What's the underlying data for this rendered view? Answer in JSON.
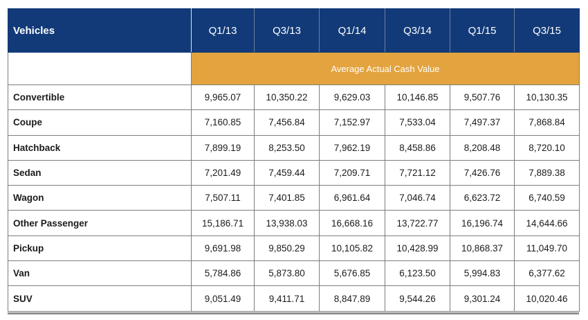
{
  "chart_data": {
    "type": "table",
    "header_label": "Vehicles",
    "columns": [
      "Q1/13",
      "Q3/13",
      "Q1/14",
      "Q3/14",
      "Q1/15",
      "Q3/15"
    ],
    "banner": "Average Actual Cash Value",
    "rows": [
      {
        "label": "Convertible",
        "values": [
          "9,965.07",
          "10,350.22",
          "9,629.03",
          "10,146.85",
          "9,507.76",
          "10,130.35"
        ]
      },
      {
        "label": "Coupe",
        "values": [
          "7,160.85",
          "7,456.84",
          "7,152.97",
          "7,533.04",
          "7,497.37",
          "7,868.84"
        ]
      },
      {
        "label": "Hatchback",
        "values": [
          "7,899.19",
          "8,253.50",
          "7,962.19",
          "8,458.86",
          "8,208.48",
          "8,720.10"
        ]
      },
      {
        "label": "Sedan",
        "values": [
          "7,201.49",
          "7,459.44",
          "7,209.71",
          "7,721.12",
          "7,426.76",
          "7,889.38"
        ]
      },
      {
        "label": "Wagon",
        "values": [
          "7,507.11",
          "7,401.85",
          "6,961.64",
          "7,046.74",
          "6,623.72",
          "6,740.59"
        ]
      },
      {
        "label": "Other Passenger",
        "values": [
          "15,186.71",
          "13,938.03",
          "16,668.16",
          "13,722.77",
          "16,196.74",
          "14,644.66"
        ]
      },
      {
        "label": "Pickup",
        "values": [
          "9,691.98",
          "9,850.29",
          "10,105.82",
          "10,428.99",
          "10,868.37",
          "11,049.70"
        ]
      },
      {
        "label": "Van",
        "values": [
          "5,784.86",
          "5,873.80",
          "5,676.85",
          "6,123.50",
          "5,994.83",
          "6,377.62"
        ]
      },
      {
        "label": "SUV",
        "values": [
          "9,051.49",
          "9,411.71",
          "8,847.89",
          "9,544.26",
          "9,301.24",
          "10,020.46"
        ]
      }
    ]
  },
  "colors": {
    "header_bg": "#123a78",
    "banner_bg": "#e3a33e",
    "grid": "#7d7d7d"
  }
}
